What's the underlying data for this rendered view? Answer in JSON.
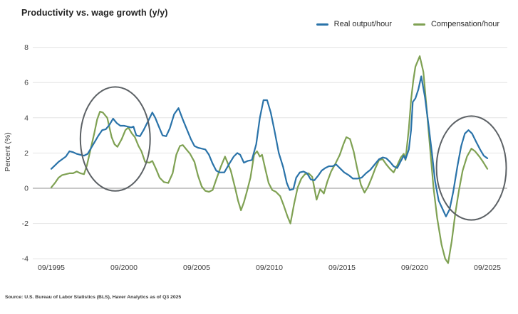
{
  "header": {
    "title": "Productivity vs. wage growth (y/y)"
  },
  "legend": {
    "items": [
      {
        "label": "Real output/hour",
        "color": "#2a73a9"
      },
      {
        "label": "Compensation/hour",
        "color": "#7fa153"
      }
    ]
  },
  "footer": {
    "source": "Source: U.S. Bureau of Labor Statistics (BLS), Haver Analytics as of Q3 2025"
  },
  "chart_data": {
    "type": "line",
    "title": "Productivity vs. wage growth (y/y)",
    "xlabel": "",
    "ylabel": "Percent (%)",
    "ylim": [
      -4.4,
      8
    ],
    "xlim": [
      1995.75,
      2027.1
    ],
    "grid": "horizontal",
    "grid_color": "#e4e4e4",
    "zero_line_color": "#a6a6a6",
    "axis_text_color": "#3d3d3d",
    "legend_position": "top-right",
    "y_ticks": [
      8,
      6,
      4,
      2,
      0,
      -2,
      -4
    ],
    "x_ticks": [
      {
        "year": 1995.75,
        "label": "09/1995"
      },
      {
        "year": 2000.75,
        "label": "09/2000"
      },
      {
        "year": 2005.75,
        "label": "09/2005"
      },
      {
        "year": 2010.75,
        "label": "09/2010"
      },
      {
        "year": 2015.75,
        "label": "09/2015"
      },
      {
        "year": 2020.75,
        "label": "09/2020"
      },
      {
        "year": 2025.75,
        "label": "09/2025"
      }
    ],
    "series": [
      {
        "name": "Real output/hour",
        "color": "#2a73a9",
        "points": [
          [
            1995.75,
            1.1
          ],
          [
            1996.0,
            1.3
          ],
          [
            1996.25,
            1.5
          ],
          [
            1996.5,
            1.65
          ],
          [
            1996.75,
            1.8
          ],
          [
            1997.0,
            2.1
          ],
          [
            1997.25,
            2.05
          ],
          [
            1997.5,
            1.95
          ],
          [
            1997.75,
            1.9
          ],
          [
            1998.0,
            1.85
          ],
          [
            1998.25,
            1.95
          ],
          [
            1998.5,
            2.3
          ],
          [
            1998.75,
            2.65
          ],
          [
            1999.0,
            3.0
          ],
          [
            1999.25,
            3.3
          ],
          [
            1999.5,
            3.35
          ],
          [
            1999.75,
            3.6
          ],
          [
            2000.0,
            3.95
          ],
          [
            2000.25,
            3.7
          ],
          [
            2000.5,
            3.55
          ],
          [
            2000.75,
            3.55
          ],
          [
            2001.0,
            3.5
          ],
          [
            2001.25,
            3.45
          ],
          [
            2001.4,
            3.5
          ],
          [
            2001.6,
            3.0
          ],
          [
            2001.85,
            2.95
          ],
          [
            2002.1,
            3.3
          ],
          [
            2002.4,
            3.8
          ],
          [
            2002.7,
            4.3
          ],
          [
            2002.9,
            4.0
          ],
          [
            2003.1,
            3.6
          ],
          [
            2003.4,
            3.0
          ],
          [
            2003.65,
            2.95
          ],
          [
            2003.9,
            3.4
          ],
          [
            2004.2,
            4.2
          ],
          [
            2004.5,
            4.55
          ],
          [
            2004.8,
            3.9
          ],
          [
            2005.1,
            3.3
          ],
          [
            2005.35,
            2.8
          ],
          [
            2005.6,
            2.4
          ],
          [
            2005.85,
            2.3
          ],
          [
            2006.1,
            2.25
          ],
          [
            2006.35,
            2.2
          ],
          [
            2006.6,
            1.9
          ],
          [
            2006.85,
            1.4
          ],
          [
            2007.1,
            1.0
          ],
          [
            2007.35,
            0.9
          ],
          [
            2007.65,
            0.9
          ],
          [
            2008.0,
            1.4
          ],
          [
            2008.3,
            1.8
          ],
          [
            2008.55,
            2.0
          ],
          [
            2008.75,
            1.9
          ],
          [
            2009.0,
            1.45
          ],
          [
            2009.25,
            1.55
          ],
          [
            2009.55,
            1.6
          ],
          [
            2009.85,
            2.5
          ],
          [
            2010.1,
            4.0
          ],
          [
            2010.35,
            5.0
          ],
          [
            2010.6,
            5.0
          ],
          [
            2010.85,
            4.3
          ],
          [
            2011.1,
            3.3
          ],
          [
            2011.4,
            2.0
          ],
          [
            2011.7,
            1.2
          ],
          [
            2011.95,
            0.3
          ],
          [
            2012.15,
            -0.1
          ],
          [
            2012.4,
            -0.05
          ],
          [
            2012.6,
            0.6
          ],
          [
            2012.85,
            0.9
          ],
          [
            2013.1,
            0.95
          ],
          [
            2013.35,
            0.85
          ],
          [
            2013.6,
            0.5
          ],
          [
            2013.85,
            0.45
          ],
          [
            2014.1,
            0.7
          ],
          [
            2014.35,
            1.0
          ],
          [
            2014.6,
            1.15
          ],
          [
            2014.85,
            1.25
          ],
          [
            2015.1,
            1.25
          ],
          [
            2015.35,
            1.35
          ],
          [
            2015.65,
            1.1
          ],
          [
            2015.9,
            0.9
          ],
          [
            2016.2,
            0.75
          ],
          [
            2016.5,
            0.55
          ],
          [
            2016.8,
            0.55
          ],
          [
            2017.1,
            0.6
          ],
          [
            2017.4,
            0.85
          ],
          [
            2017.7,
            1.05
          ],
          [
            2018.0,
            1.35
          ],
          [
            2018.3,
            1.65
          ],
          [
            2018.55,
            1.75
          ],
          [
            2018.8,
            1.7
          ],
          [
            2019.05,
            1.5
          ],
          [
            2019.3,
            1.25
          ],
          [
            2019.55,
            1.15
          ],
          [
            2019.8,
            1.55
          ],
          [
            2020.0,
            1.85
          ],
          [
            2020.12,
            1.65
          ],
          [
            2020.35,
            2.2
          ],
          [
            2020.5,
            3.3
          ],
          [
            2020.62,
            4.9
          ],
          [
            2020.8,
            5.1
          ],
          [
            2021.0,
            5.6
          ],
          [
            2021.2,
            6.35
          ],
          [
            2021.45,
            5.2
          ],
          [
            2021.7,
            3.6
          ],
          [
            2021.95,
            1.9
          ],
          [
            2022.15,
            0.4
          ],
          [
            2022.4,
            -0.7
          ],
          [
            2022.65,
            -1.15
          ],
          [
            2022.9,
            -1.6
          ],
          [
            2023.15,
            -1.2
          ],
          [
            2023.4,
            -0.2
          ],
          [
            2023.7,
            1.3
          ],
          [
            2023.95,
            2.4
          ],
          [
            2024.2,
            3.1
          ],
          [
            2024.45,
            3.3
          ],
          [
            2024.7,
            3.1
          ],
          [
            2025.0,
            2.6
          ],
          [
            2025.25,
            2.2
          ],
          [
            2025.5,
            1.85
          ],
          [
            2025.75,
            1.7
          ]
        ]
      },
      {
        "name": "Compensation/hour",
        "color": "#7fa153",
        "points": [
          [
            1995.75,
            0.05
          ],
          [
            1996.0,
            0.3
          ],
          [
            1996.25,
            0.6
          ],
          [
            1996.5,
            0.75
          ],
          [
            1996.75,
            0.8
          ],
          [
            1997.0,
            0.85
          ],
          [
            1997.25,
            0.85
          ],
          [
            1997.5,
            0.95
          ],
          [
            1997.75,
            0.85
          ],
          [
            1998.0,
            0.8
          ],
          [
            1998.2,
            1.3
          ],
          [
            1998.45,
            2.2
          ],
          [
            1998.7,
            3.1
          ],
          [
            1998.9,
            3.9
          ],
          [
            1999.1,
            4.35
          ],
          [
            1999.3,
            4.3
          ],
          [
            1999.6,
            4.0
          ],
          [
            1999.9,
            2.9
          ],
          [
            2000.1,
            2.5
          ],
          [
            2000.3,
            2.35
          ],
          [
            2000.6,
            2.8
          ],
          [
            2000.85,
            3.3
          ],
          [
            2001.05,
            3.45
          ],
          [
            2001.3,
            3.1
          ],
          [
            2001.5,
            2.9
          ],
          [
            2001.75,
            2.4
          ],
          [
            2001.95,
            2.1
          ],
          [
            2002.2,
            1.5
          ],
          [
            2002.5,
            1.45
          ],
          [
            2002.7,
            1.55
          ],
          [
            2002.95,
            1.1
          ],
          [
            2003.2,
            0.6
          ],
          [
            2003.5,
            0.35
          ],
          [
            2003.8,
            0.3
          ],
          [
            2004.1,
            0.85
          ],
          [
            2004.35,
            1.9
          ],
          [
            2004.6,
            2.4
          ],
          [
            2004.8,
            2.45
          ],
          [
            2005.05,
            2.2
          ],
          [
            2005.3,
            1.95
          ],
          [
            2005.6,
            1.5
          ],
          [
            2005.85,
            0.7
          ],
          [
            2006.1,
            0.1
          ],
          [
            2006.35,
            -0.15
          ],
          [
            2006.6,
            -0.2
          ],
          [
            2006.85,
            -0.1
          ],
          [
            2007.1,
            0.5
          ],
          [
            2007.4,
            1.2
          ],
          [
            2007.7,
            1.8
          ],
          [
            2007.9,
            1.4
          ],
          [
            2008.1,
            1.0
          ],
          [
            2008.4,
            0.0
          ],
          [
            2008.6,
            -0.7
          ],
          [
            2008.8,
            -1.25
          ],
          [
            2009.0,
            -0.8
          ],
          [
            2009.2,
            -0.2
          ],
          [
            2009.45,
            0.6
          ],
          [
            2009.7,
            1.9
          ],
          [
            2009.9,
            2.1
          ],
          [
            2010.1,
            1.8
          ],
          [
            2010.25,
            1.9
          ],
          [
            2010.5,
            1.0
          ],
          [
            2010.7,
            0.3
          ],
          [
            2010.95,
            -0.1
          ],
          [
            2011.2,
            -0.2
          ],
          [
            2011.5,
            -0.45
          ],
          [
            2011.75,
            -1.0
          ],
          [
            2012.0,
            -1.6
          ],
          [
            2012.2,
            -2.0
          ],
          [
            2012.45,
            -0.9
          ],
          [
            2012.7,
            0.05
          ],
          [
            2012.95,
            0.55
          ],
          [
            2013.2,
            0.8
          ],
          [
            2013.45,
            0.85
          ],
          [
            2013.7,
            0.65
          ],
          [
            2014.0,
            -0.65
          ],
          [
            2014.25,
            -0.05
          ],
          [
            2014.5,
            -0.3
          ],
          [
            2014.75,
            0.4
          ],
          [
            2015.0,
            0.95
          ],
          [
            2015.3,
            1.4
          ],
          [
            2015.6,
            1.9
          ],
          [
            2015.85,
            2.5
          ],
          [
            2016.05,
            2.9
          ],
          [
            2016.3,
            2.8
          ],
          [
            2016.55,
            2.1
          ],
          [
            2016.8,
            1.1
          ],
          [
            2017.05,
            0.2
          ],
          [
            2017.3,
            -0.25
          ],
          [
            2017.55,
            0.1
          ],
          [
            2017.8,
            0.6
          ],
          [
            2018.05,
            1.15
          ],
          [
            2018.3,
            1.6
          ],
          [
            2018.55,
            1.65
          ],
          [
            2018.8,
            1.35
          ],
          [
            2019.05,
            1.1
          ],
          [
            2019.3,
            0.9
          ],
          [
            2019.55,
            1.3
          ],
          [
            2019.8,
            1.75
          ],
          [
            2020.0,
            1.95
          ],
          [
            2020.12,
            1.6
          ],
          [
            2020.35,
            3.4
          ],
          [
            2020.5,
            5.0
          ],
          [
            2020.65,
            6.1
          ],
          [
            2020.8,
            6.9
          ],
          [
            2021.1,
            7.5
          ],
          [
            2021.35,
            6.6
          ],
          [
            2021.6,
            4.3
          ],
          [
            2021.85,
            1.9
          ],
          [
            2022.05,
            0.0
          ],
          [
            2022.3,
            -1.7
          ],
          [
            2022.6,
            -3.2
          ],
          [
            2022.85,
            -4.0
          ],
          [
            2023.05,
            -4.25
          ],
          [
            2023.3,
            -3.0
          ],
          [
            2023.55,
            -1.4
          ],
          [
            2023.8,
            -0.1
          ],
          [
            2024.05,
            1.0
          ],
          [
            2024.35,
            1.8
          ],
          [
            2024.65,
            2.25
          ],
          [
            2024.9,
            2.1
          ],
          [
            2025.2,
            1.8
          ],
          [
            2025.45,
            1.5
          ],
          [
            2025.75,
            1.1
          ]
        ]
      }
    ],
    "annotations": [
      {
        "shape": "ellipse",
        "x_year": 2000.15,
        "y_value": 2.8,
        "rx_years": 2.4,
        "ry_values": 2.95,
        "color": "#5c6165"
      },
      {
        "shape": "ellipse",
        "x_year": 2024.65,
        "y_value": 1.15,
        "rx_years": 2.4,
        "ry_values": 2.95,
        "color": "#5c6165"
      }
    ]
  }
}
